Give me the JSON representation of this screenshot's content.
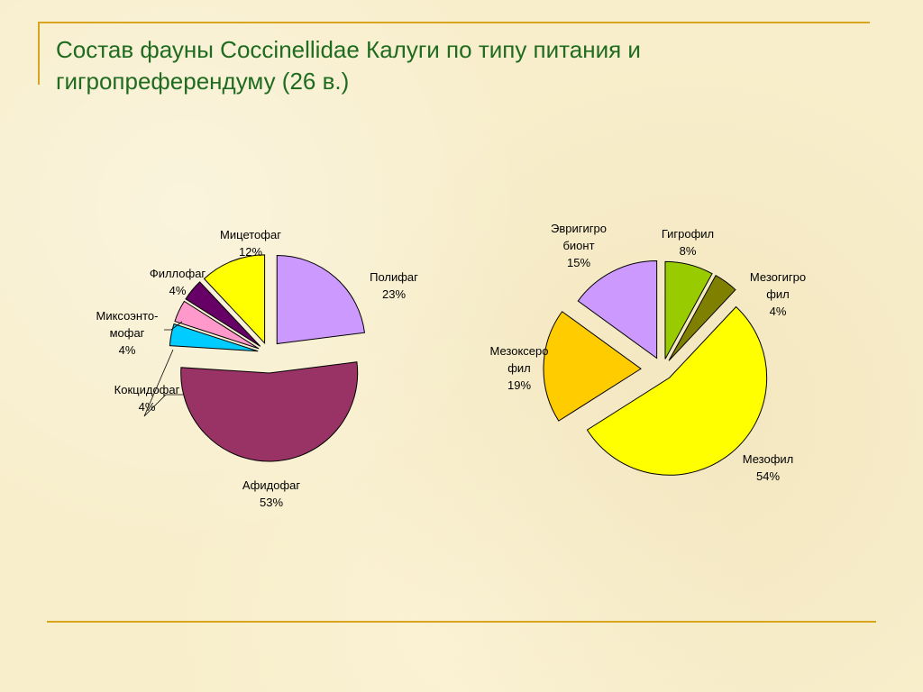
{
  "title": "Состав фауны Coccinellidae Калуги по типу питания и гигропреферендуму (26 в.)",
  "chart_data": [
    {
      "type": "pie",
      "title": "",
      "slices": [
        {
          "name": "Полифаг",
          "value": 23,
          "label": "23%",
          "color": "#cc99ff"
        },
        {
          "name": "Афидофаг",
          "value": 53,
          "label": "53%",
          "color": "#993366"
        },
        {
          "name": "Кокцидофаг",
          "value": 4,
          "label": "4%",
          "color": "#00ccff"
        },
        {
          "name": "Миксоэнто-мофаг",
          "value": 4,
          "label": "4%",
          "color": "#ff99cc"
        },
        {
          "name": "Филлофаг",
          "value": 4,
          "label": "4%",
          "color": "#660066"
        },
        {
          "name": "Мицетофаг",
          "value": 12,
          "label": "12%",
          "color": "#ffff00"
        }
      ]
    },
    {
      "type": "pie",
      "title": "",
      "slices": [
        {
          "name": "Гигрофил",
          "value": 8,
          "label": "8%",
          "color": "#99cc00"
        },
        {
          "name": "Мезогигрофил",
          "value": 4,
          "label": "4%",
          "color": "#808000"
        },
        {
          "name": "Мезофил",
          "value": 54,
          "label": "54%",
          "color": "#ffff00"
        },
        {
          "name": "Мезоксерофил",
          "value": 19,
          "label": "19%",
          "color": "#ffcc00"
        },
        {
          "name": "Эвригигробионт",
          "value": 15,
          "label": "15%",
          "color": "#cc99ff"
        }
      ]
    }
  ]
}
